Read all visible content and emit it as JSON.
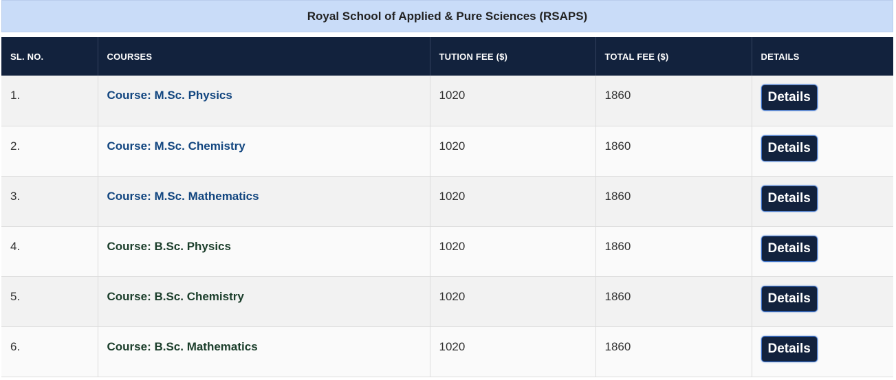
{
  "banner": {
    "title": "Royal School of Applied & Pure Sciences (RSAPS)"
  },
  "table": {
    "headers": [
      "SL. NO.",
      "COURSES",
      "TUTION FEE ($)",
      "TOTAL FEE ($)",
      "DETAILS"
    ],
    "rows": [
      {
        "sl": "1.",
        "course": "Course: M.Sc. Physics",
        "tuition": "1020",
        "total": "1860",
        "details": "Details"
      },
      {
        "sl": "2.",
        "course": "Course: M.Sc. Chemistry",
        "tuition": "1020",
        "total": "1860",
        "details": "Details"
      },
      {
        "sl": "3.",
        "course": "Course: M.Sc. Mathematics",
        "tuition": "1020",
        "total": "1860",
        "details": "Details"
      },
      {
        "sl": "4.",
        "course": "Course: B.Sc. Physics",
        "tuition": "1020",
        "total": "1860",
        "details": "Details"
      },
      {
        "sl": "5.",
        "course": "Course: B.Sc. Chemistry",
        "tuition": "1020",
        "total": "1860",
        "details": "Details"
      },
      {
        "sl": "6.",
        "course": "Course: B.Sc. Mathematics",
        "tuition": "1020",
        "total": "1860",
        "details": "Details"
      }
    ]
  },
  "colors": {
    "banner_bg": "#c9dcf8",
    "header_bg": "#12223d",
    "msc_link": "#11457f",
    "bsc_link": "#1a3d2a",
    "button_bg": "#12223d"
  }
}
